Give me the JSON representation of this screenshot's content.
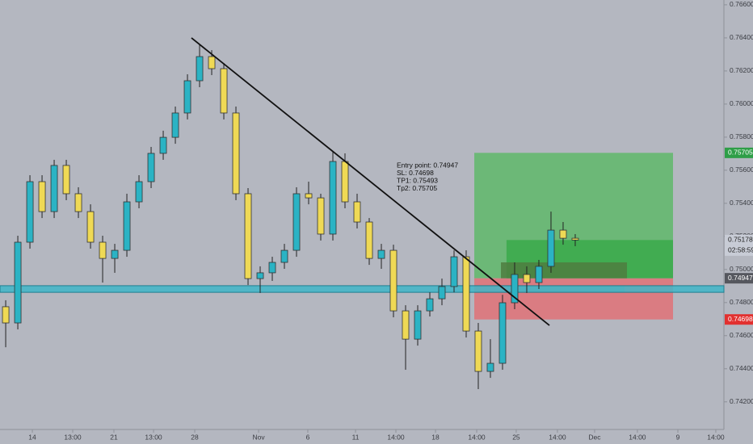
{
  "chart_data": {
    "type": "candlestick",
    "x": [
      0,
      1,
      2,
      3,
      4,
      5,
      6,
      7,
      8,
      9,
      10,
      11,
      12,
      13,
      14,
      15,
      16,
      17,
      18,
      19,
      20,
      21,
      22,
      23,
      24,
      25,
      26,
      27,
      28,
      29,
      30,
      31,
      32,
      33,
      34,
      35,
      36,
      37,
      38,
      39,
      40,
      41,
      42,
      43,
      44,
      45,
      46,
      47
    ],
    "ohlc": [
      [
        0.74775,
        0.74814,
        0.7453,
        0.74677
      ],
      [
        0.74677,
        0.75204,
        0.74638,
        0.75165
      ],
      [
        0.75165,
        0.7557,
        0.75126,
        0.75531
      ],
      [
        0.75531,
        0.7557,
        0.75311,
        0.7535
      ],
      [
        0.7535,
        0.75663,
        0.75311,
        0.75629
      ],
      [
        0.75629,
        0.75663,
        0.75419,
        0.75458
      ],
      [
        0.75458,
        0.75497,
        0.75311,
        0.7535
      ],
      [
        0.7535,
        0.75394,
        0.75126,
        0.75165
      ],
      [
        0.75165,
        0.75204,
        0.74921,
        0.75067
      ],
      [
        0.75067,
        0.75155,
        0.7498,
        0.75116
      ],
      [
        0.75116,
        0.75458,
        0.75077,
        0.75409
      ],
      [
        0.75409,
        0.7557,
        0.7537,
        0.75531
      ],
      [
        0.75531,
        0.75741,
        0.75492,
        0.75702
      ],
      [
        0.75702,
        0.75839,
        0.75663,
        0.75799
      ],
      [
        0.75799,
        0.75985,
        0.7576,
        0.75946
      ],
      [
        0.75946,
        0.7618,
        0.75907,
        0.76141
      ],
      [
        0.76141,
        0.76361,
        0.76102,
        0.76287
      ],
      [
        0.76287,
        0.76326,
        0.76175,
        0.76214
      ],
      [
        0.76214,
        0.76248,
        0.75907,
        0.75946
      ],
      [
        0.75946,
        0.75985,
        0.75419,
        0.75458
      ],
      [
        0.75458,
        0.75492,
        0.74906,
        0.74945
      ],
      [
        0.74945,
        0.75019,
        0.74858,
        0.7498
      ],
      [
        0.7498,
        0.75077,
        0.74931,
        0.75043
      ],
      [
        0.75043,
        0.75155,
        0.75004,
        0.75116
      ],
      [
        0.75116,
        0.75497,
        0.75077,
        0.75458
      ],
      [
        0.75458,
        0.75531,
        0.75394,
        0.75433
      ],
      [
        0.75433,
        0.75458,
        0.75175,
        0.75214
      ],
      [
        0.75214,
        0.75712,
        0.75175,
        0.75653
      ],
      [
        0.75653,
        0.75702,
        0.7537,
        0.75409
      ],
      [
        0.75409,
        0.75458,
        0.75248,
        0.75287
      ],
      [
        0.75287,
        0.75311,
        0.75028,
        0.75067
      ],
      [
        0.75067,
        0.75155,
        0.75004,
        0.75116
      ],
      [
        0.75116,
        0.7515,
        0.74711,
        0.7475
      ],
      [
        0.7475,
        0.74784,
        0.74394,
        0.74579
      ],
      [
        0.74579,
        0.74784,
        0.7454,
        0.7475
      ],
      [
        0.7475,
        0.74862,
        0.74716,
        0.74823
      ],
      [
        0.74823,
        0.74945,
        0.74784,
        0.74897
      ],
      [
        0.74897,
        0.75116,
        0.74862,
        0.75077
      ],
      [
        0.75077,
        0.75116,
        0.74589,
        0.74628
      ],
      [
        0.74628,
        0.74677,
        0.74277,
        0.74384
      ],
      [
        0.74384,
        0.74579,
        0.74345,
        0.74433
      ],
      [
        0.74433,
        0.74847,
        0.74394,
        0.74799
      ],
      [
        0.74799,
        0.75043,
        0.7476,
        0.7497
      ],
      [
        0.7497,
        0.75019,
        0.74858,
        0.74921
      ],
      [
        0.74921,
        0.75058,
        0.74882,
        0.75019
      ],
      [
        0.75019,
        0.7535,
        0.7498,
        0.75238
      ],
      [
        0.75238,
        0.75287,
        0.7515,
        0.75189
      ],
      [
        0.75189,
        0.75214,
        0.75141,
        0.75178
      ]
    ],
    "up_color": "#2bb3c4",
    "down_color": "#efd955",
    "xlim": [
      -0.47,
      59.27
    ],
    "ylim": [
      0.74033,
      0.76629
    ],
    "xticks": [
      {
        "value": 2.2,
        "label": "14"
      },
      {
        "value": 5.53,
        "label": "13:00"
      },
      {
        "value": 8.93,
        "label": "21"
      },
      {
        "value": 12.2,
        "label": "13:00"
      },
      {
        "value": 15.6,
        "label": "28"
      },
      {
        "value": 20.87,
        "label": "Nov"
      },
      {
        "value": 24.93,
        "label": "6"
      },
      {
        "value": 28.87,
        "label": "11"
      },
      {
        "value": 32.2,
        "label": "14:00"
      },
      {
        "value": 35.47,
        "label": "18"
      },
      {
        "value": 38.87,
        "label": "14:00"
      },
      {
        "value": 42.13,
        "label": "25"
      },
      {
        "value": 45.53,
        "label": "14:00"
      },
      {
        "value": 48.6,
        "label": "Dec"
      },
      {
        "value": 52.13,
        "label": "14:00"
      },
      {
        "value": 55.47,
        "label": "9"
      },
      {
        "value": 58.6,
        "label": "14:00"
      }
    ],
    "yticks": [
      {
        "value": 0.742,
        "label": "0.74200"
      },
      {
        "value": 0.744,
        "label": "0.74400"
      },
      {
        "value": 0.746,
        "label": "0.74600"
      },
      {
        "value": 0.748,
        "label": "0.74800"
      },
      {
        "value": 0.75,
        "label": "0.75000"
      },
      {
        "value": 0.752,
        "label": "0.75200"
      },
      {
        "value": 0.754,
        "label": "0.75400"
      },
      {
        "value": 0.756,
        "label": "0.75600"
      },
      {
        "value": 0.758,
        "label": "0.75800"
      },
      {
        "value": 0.76,
        "label": "0.76000"
      },
      {
        "value": 0.762,
        "label": "0.76200"
      },
      {
        "value": 0.764,
        "label": "0.76400"
      },
      {
        "value": 0.766,
        "label": "0.76600"
      }
    ],
    "trendline": {
      "x": [
        15.33,
        44.87
      ],
      "y": [
        0.764,
        0.74662
      ],
      "color": "#111111"
    },
    "support_zone": {
      "from": 0.74862,
      "to": 0.74902,
      "color": "#3fb6c8"
    },
    "position": {
      "x": [
        38.67,
        55.07
      ],
      "entry": 0.74947,
      "stop": 0.74698,
      "target": 0.75705,
      "profit_color": "#5fb86a",
      "loss_color": "#e07277"
    },
    "zones": [
      {
        "x": [
          41.33,
          55.07
        ],
        "y": [
          0.74947,
          0.75178
        ],
        "color": "#3aa94a"
      },
      {
        "x": [
          40.87,
          51.27
        ],
        "y": [
          0.74947,
          0.75043
        ],
        "color": "#4f7d3f"
      },
      {
        "x": [
          41.4,
          51.07
        ],
        "y": [
          0.74862,
          0.74902
        ],
        "color": "#8b8d93"
      }
    ],
    "annotation": [
      "Entry point: 0.74947",
      "SL: 0.74698",
      "TP1: 0.75493",
      "Tp2: 0.75705"
    ],
    "price_labels": [
      {
        "value": 0.75705,
        "label": "0.75705",
        "color": "#2e9e47"
      },
      {
        "value": 0.75178,
        "label": "0.75178",
        "color": "#c8ccd6"
      },
      {
        "value": 0.74947,
        "label": "0.74947",
        "color": "#55575e"
      },
      {
        "value": 0.74698,
        "label": "0.74698",
        "color": "#e2302f"
      }
    ],
    "countdown": "02:58:59"
  }
}
